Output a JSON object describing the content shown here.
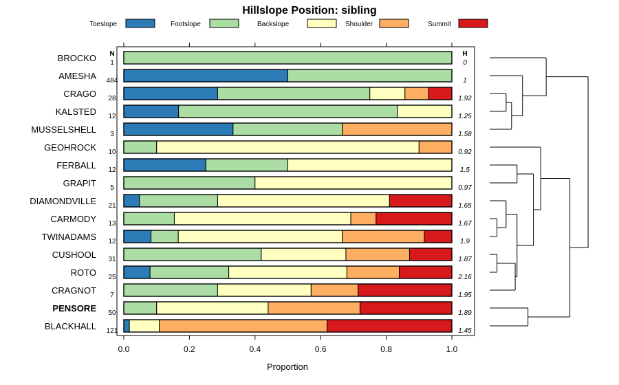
{
  "chart_data": {
    "type": "bar",
    "orientation": "horizontal",
    "stacked": true,
    "title": "Hillslope Position: sibling",
    "xlabel": "Proportion",
    "ylabel": "",
    "xlim": [
      0,
      1
    ],
    "xticks": [
      "0.0",
      "0.2",
      "0.4",
      "0.6",
      "0.8",
      "1.0"
    ],
    "n_header": "N",
    "h_header": "H",
    "categories": [
      "BROCKO",
      "AMESHA",
      "CRAGO",
      "KALSTED",
      "MUSSELSHELL",
      "GEOHROCK",
      "FERBALL",
      "GRAPIT",
      "DIAMONDVILLE",
      "CARMODY",
      "TWINADAMS",
      "CUSHOOL",
      "ROTO",
      "CRAGNOT",
      "PENSORE",
      "BLACKHALL"
    ],
    "highlight": "PENSORE",
    "n": [
      "1",
      "484",
      "28",
      "12",
      "3",
      "10",
      "12",
      "5",
      "21",
      "13",
      "12",
      "31",
      "25",
      "7",
      "50",
      "121"
    ],
    "h": [
      "0",
      "1",
      "1.92",
      "1.25",
      "1.58",
      "0.92",
      "1.5",
      "0.97",
      "1.65",
      "1.67",
      "1.9",
      "1.87",
      "2.16",
      "1.95",
      "1.89",
      "1.45"
    ],
    "series": [
      {
        "name": "Toeslope",
        "color": "#2C7BB6",
        "values": [
          0,
          0.5,
          0.286,
          0.167,
          0.333,
          0,
          0.25,
          0,
          0.048,
          0,
          0.083,
          0,
          0.08,
          0,
          0,
          0.017
        ]
      },
      {
        "name": "Footslope",
        "color": "#ABDDA4",
        "values": [
          1,
          0.5,
          0.464,
          0.667,
          0.333,
          0.1,
          0.25,
          0.4,
          0.238,
          0.154,
          0.083,
          0.419,
          0.24,
          0.286,
          0.1,
          0.0
        ]
      },
      {
        "name": "Backslope",
        "color": "#FFFFBF",
        "values": [
          0,
          0,
          0.107,
          0.166,
          0,
          0.8,
          0.5,
          0.6,
          0.524,
          0.538,
          0.5,
          0.258,
          0.36,
          0.285,
          0.34,
          0.091
        ]
      },
      {
        "name": "Shoulder",
        "color": "#FDAE61",
        "values": [
          0,
          0,
          0.072,
          0,
          0.334,
          0.1,
          0,
          0,
          0,
          0.077,
          0.25,
          0.194,
          0.16,
          0.143,
          0.28,
          0.512
        ]
      },
      {
        "name": "Summit",
        "color": "#D7191C",
        "values": [
          0,
          0,
          0.071,
          0,
          0,
          0,
          0,
          0,
          0.19,
          0.231,
          0.084,
          0.129,
          0.16,
          0.286,
          0.28,
          0.38
        ]
      }
    ],
    "dendrogram": {
      "method": "hierarchical clustering",
      "merges": [
        [
          2,
          3,
          0.09
        ],
        [
          2,
          4,
          0.12
        ],
        [
          1,
          2,
          0.18
        ],
        [
          0,
          1,
          0.31
        ],
        [
          9,
          10,
          0.04
        ],
        [
          11,
          12,
          0.04
        ],
        [
          8,
          9,
          0.09
        ],
        [
          11,
          13,
          0.14
        ],
        [
          8,
          11,
          0.15
        ],
        [
          6,
          7,
          0.15
        ],
        [
          6,
          8,
          0.24
        ],
        [
          5,
          6,
          0.28
        ],
        [
          14,
          15,
          0.21
        ],
        [
          5,
          14,
          0.44
        ],
        [
          0,
          5,
          0.54
        ]
      ]
    }
  }
}
